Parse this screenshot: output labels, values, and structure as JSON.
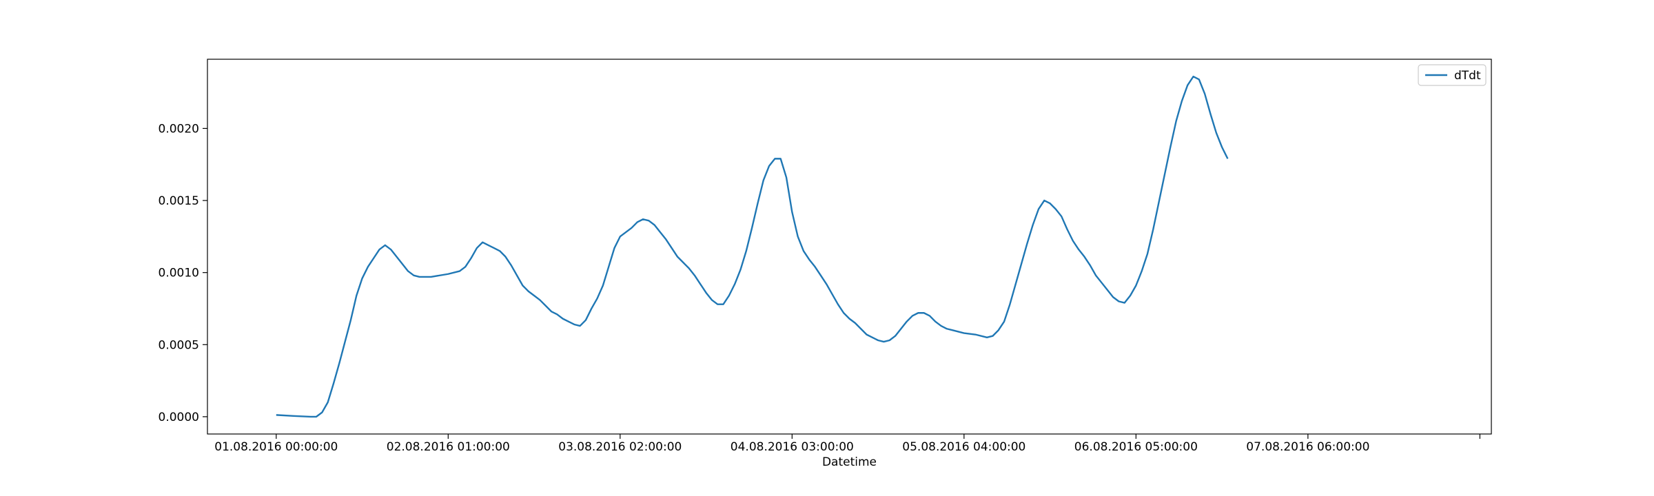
{
  "chart_data": {
    "type": "line",
    "title": "",
    "xlabel": "Datetime",
    "ylabel": "",
    "grid": false,
    "legend_position": "top-right",
    "series_color": "#1f77b4",
    "xlim": [
      -12,
      212
    ],
    "ylim": [
      -0.00012,
      0.00248
    ],
    "x_ticks": [
      {
        "value": 0,
        "label": "01.08.2016 00:00:00"
      },
      {
        "value": 30,
        "label": "02.08.2016 01:00:00"
      },
      {
        "value": 60,
        "label": "03.08.2016 02:00:00"
      },
      {
        "value": 90,
        "label": "04.08.2016 03:00:00"
      },
      {
        "value": 120,
        "label": "05.08.2016 04:00:00"
      },
      {
        "value": 150,
        "label": "06.08.2016 05:00:00"
      },
      {
        "value": 180,
        "label": "07.08.2016 06:00:00"
      },
      {
        "value": 210,
        "label": ""
      }
    ],
    "y_ticks": [
      {
        "value": 0.0,
        "label": "0.0000"
      },
      {
        "value": 0.0005,
        "label": "0.0005"
      },
      {
        "value": 0.001,
        "label": "0.0010"
      },
      {
        "value": 0.0015,
        "label": "0.0015"
      },
      {
        "value": 0.002,
        "label": "0.0020"
      }
    ],
    "series": [
      {
        "name": "dTdt",
        "points": [
          [
            0,
            1.2e-05
          ],
          [
            3,
            5e-06
          ],
          [
            6,
            0.0
          ],
          [
            7,
            0.0
          ],
          [
            8,
            3e-05
          ],
          [
            9,
            0.0001
          ],
          [
            10,
            0.00023
          ],
          [
            11,
            0.00037
          ],
          [
            12,
            0.00052
          ],
          [
            13,
            0.00067
          ],
          [
            14,
            0.00084
          ],
          [
            15,
            0.00096
          ],
          [
            16,
            0.00104
          ],
          [
            17,
            0.0011
          ],
          [
            18,
            0.00116
          ],
          [
            19,
            0.00119
          ],
          [
            20,
            0.00116
          ],
          [
            21,
            0.00111
          ],
          [
            22,
            0.00106
          ],
          [
            23,
            0.00101
          ],
          [
            24,
            0.00098
          ],
          [
            25,
            0.00097
          ],
          [
            27,
            0.00097
          ],
          [
            30,
            0.00099
          ],
          [
            32,
            0.00101
          ],
          [
            33,
            0.00104
          ],
          [
            34,
            0.0011
          ],
          [
            35,
            0.00117
          ],
          [
            36,
            0.00121
          ],
          [
            37,
            0.00119
          ],
          [
            38,
            0.00117
          ],
          [
            39,
            0.00115
          ],
          [
            40,
            0.00111
          ],
          [
            41,
            0.00105
          ],
          [
            42,
            0.00098
          ],
          [
            43,
            0.00091
          ],
          [
            44,
            0.00087
          ],
          [
            45,
            0.00084
          ],
          [
            46,
            0.00081
          ],
          [
            47,
            0.00077
          ],
          [
            48,
            0.00073
          ],
          [
            49,
            0.00071
          ],
          [
            50,
            0.00068
          ],
          [
            51,
            0.00066
          ],
          [
            52,
            0.00064
          ],
          [
            53,
            0.00063
          ],
          [
            54,
            0.00067
          ],
          [
            55,
            0.00075
          ],
          [
            56,
            0.00082
          ],
          [
            57,
            0.00091
          ],
          [
            58,
            0.00104
          ],
          [
            59,
            0.00117
          ],
          [
            60,
            0.00125
          ],
          [
            61,
            0.00128
          ],
          [
            62,
            0.00131
          ],
          [
            63,
            0.00135
          ],
          [
            64,
            0.00137
          ],
          [
            65,
            0.00136
          ],
          [
            66,
            0.00133
          ],
          [
            67,
            0.00128
          ],
          [
            68,
            0.00123
          ],
          [
            69,
            0.00117
          ],
          [
            70,
            0.00111
          ],
          [
            71,
            0.00107
          ],
          [
            72,
            0.00103
          ],
          [
            73,
            0.00098
          ],
          [
            74,
            0.00092
          ],
          [
            75,
            0.00086
          ],
          [
            76,
            0.00081
          ],
          [
            77,
            0.00078
          ],
          [
            78,
            0.00078
          ],
          [
            79,
            0.00084
          ],
          [
            80,
            0.00092
          ],
          [
            81,
            0.00102
          ],
          [
            82,
            0.00115
          ],
          [
            83,
            0.00131
          ],
          [
            84,
            0.00148
          ],
          [
            85,
            0.00164
          ],
          [
            86,
            0.00174
          ],
          [
            87,
            0.00179
          ],
          [
            88,
            0.00179
          ],
          [
            89,
            0.00166
          ],
          [
            90,
            0.00142
          ],
          [
            91,
            0.00125
          ],
          [
            92,
            0.00115
          ],
          [
            93,
            0.00109
          ],
          [
            94,
            0.00104
          ],
          [
            95,
            0.00098
          ],
          [
            96,
            0.00092
          ],
          [
            97,
            0.00085
          ],
          [
            98,
            0.00078
          ],
          [
            99,
            0.00072
          ],
          [
            100,
            0.00068
          ],
          [
            101,
            0.00065
          ],
          [
            102,
            0.00061
          ],
          [
            103,
            0.00057
          ],
          [
            104,
            0.00055
          ],
          [
            105,
            0.00053
          ],
          [
            106,
            0.00052
          ],
          [
            107,
            0.00053
          ],
          [
            108,
            0.00056
          ],
          [
            109,
            0.00061
          ],
          [
            110,
            0.00066
          ],
          [
            111,
            0.0007
          ],
          [
            112,
            0.00072
          ],
          [
            113,
            0.00072
          ],
          [
            114,
            0.0007
          ],
          [
            115,
            0.00066
          ],
          [
            116,
            0.00063
          ],
          [
            117,
            0.00061
          ],
          [
            118,
            0.0006
          ],
          [
            119,
            0.00059
          ],
          [
            120,
            0.00058
          ],
          [
            122,
            0.00057
          ],
          [
            124,
            0.00055
          ],
          [
            125,
            0.00056
          ],
          [
            126,
            0.0006
          ],
          [
            127,
            0.00066
          ],
          [
            128,
            0.00078
          ],
          [
            129,
            0.00092
          ],
          [
            130,
            0.00106
          ],
          [
            131,
            0.0012
          ],
          [
            132,
            0.00133
          ],
          [
            133,
            0.00144
          ],
          [
            134,
            0.0015
          ],
          [
            135,
            0.00148
          ],
          [
            136,
            0.00144
          ],
          [
            137,
            0.00139
          ],
          [
            138,
            0.0013
          ],
          [
            139,
            0.00122
          ],
          [
            140,
            0.00116
          ],
          [
            141,
            0.00111
          ],
          [
            142,
            0.00105
          ],
          [
            143,
            0.00098
          ],
          [
            144,
            0.00093
          ],
          [
            145,
            0.00088
          ],
          [
            146,
            0.00083
          ],
          [
            147,
            0.0008
          ],
          [
            148,
            0.00079
          ],
          [
            149,
            0.00084
          ],
          [
            150,
            0.00091
          ],
          [
            151,
            0.00101
          ],
          [
            152,
            0.00113
          ],
          [
            153,
            0.0013
          ],
          [
            154,
            0.00149
          ],
          [
            155,
            0.00168
          ],
          [
            156,
            0.00187
          ],
          [
            157,
            0.00205
          ],
          [
            158,
            0.00219
          ],
          [
            159,
            0.0023
          ],
          [
            160,
            0.00236
          ],
          [
            161,
            0.00234
          ],
          [
            162,
            0.00224
          ],
          [
            163,
            0.0021
          ],
          [
            164,
            0.00197
          ],
          [
            165,
            0.00187
          ],
          [
            166,
            0.00179
          ]
        ]
      }
    ]
  }
}
